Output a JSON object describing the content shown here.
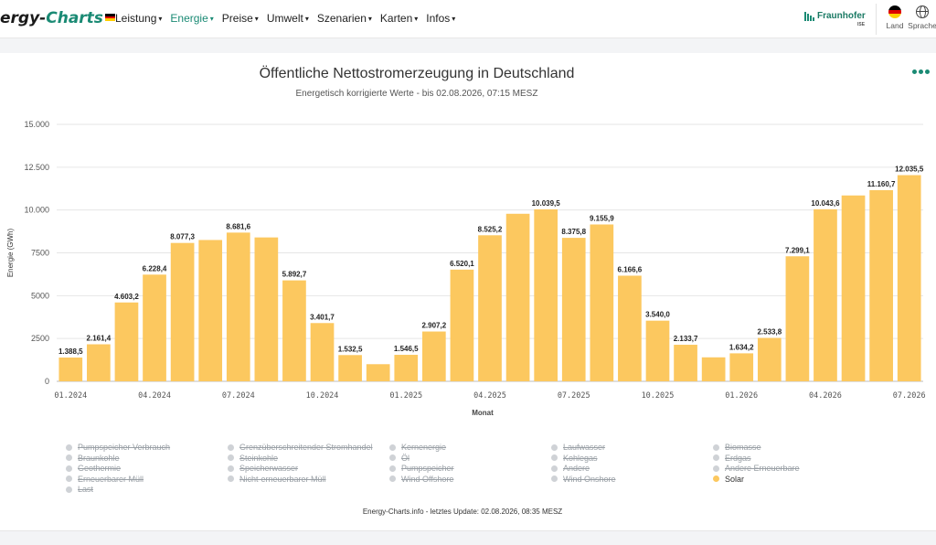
{
  "header": {
    "logo_prefix": "ergy-",
    "logo_accent": "Charts",
    "nav": [
      {
        "label": "Leistung",
        "active": false
      },
      {
        "label": "Energie",
        "active": true
      },
      {
        "label": "Preise",
        "active": false
      },
      {
        "label": "Umwelt",
        "active": false
      },
      {
        "label": "Szenarien",
        "active": false
      },
      {
        "label": "Karten",
        "active": false
      },
      {
        "label": "Infos",
        "active": false
      }
    ],
    "fraunhofer": "Fraunhofer",
    "fraunhofer_sub": "ISE",
    "land_label": "Land",
    "lang_label": "Sprache",
    "land_icon": "germany-flag-icon",
    "lang_icon": "globe-icon"
  },
  "colors": {
    "accent": "#1a8a74",
    "bar": "#fcc85f",
    "legend_off": "#cfd2d6"
  },
  "chart_data": {
    "type": "bar",
    "title": "Öffentliche Nettostromerzeugung in Deutschland",
    "subtitle": "Energetisch korrigierte Werte - bis 02.08.2026, 07:15 MESZ",
    "xlabel": "Monat",
    "ylabel": "Energie (GWh)",
    "ylim": [
      0,
      15000
    ],
    "y_ticks": [
      0,
      2500,
      5000,
      7500,
      10000,
      12500,
      15000
    ],
    "y_tick_labels": [
      "0",
      "2500",
      "5000",
      "7500",
      "10.000",
      "12.500",
      "15.000"
    ],
    "x_tick_labels": [
      {
        "index": 0,
        "label": "01.2024"
      },
      {
        "index": 3,
        "label": "04.2024"
      },
      {
        "index": 6,
        "label": "07.2024"
      },
      {
        "index": 9,
        "label": "10.2024"
      },
      {
        "index": 12,
        "label": "01.2025"
      },
      {
        "index": 15,
        "label": "04.2025"
      },
      {
        "index": 18,
        "label": "07.2025"
      },
      {
        "index": 21,
        "label": "10.2025"
      },
      {
        "index": 24,
        "label": "01.2026"
      },
      {
        "index": 27,
        "label": "04.2026"
      },
      {
        "index": 30,
        "label": "07.2026"
      }
    ],
    "grid": true,
    "categories": [
      "01.2024",
      "02.2024",
      "03.2024",
      "04.2024",
      "05.2024",
      "06.2024",
      "07.2024",
      "08.2024",
      "09.2024",
      "10.2024",
      "11.2024",
      "12.2024",
      "01.2025",
      "02.2025",
      "03.2025",
      "04.2025",
      "05.2025",
      "06.2025",
      "07.2025",
      "08.2025",
      "09.2025",
      "10.2025",
      "11.2025",
      "12.2025",
      "01.2026",
      "02.2026",
      "03.2026",
      "04.2026",
      "05.2026",
      "06.2026",
      "07.2026"
    ],
    "series": [
      {
        "name": "Solar",
        "values": [
          1388.5,
          2161.4,
          4603.2,
          6228.4,
          8077.3,
          8250,
          8681.6,
          8400,
          5892.7,
          3401.7,
          1532.5,
          1000,
          1546.5,
          2907.2,
          6520.1,
          8525.2,
          9780,
          10039.5,
          8375.8,
          9155.9,
          6166.6,
          3540.0,
          2133.7,
          1400,
          1634.2,
          2533.8,
          7299.1,
          10043.6,
          10850,
          11160.7,
          12035.5
        ],
        "labels": [
          "1.388,5",
          "2.161,4",
          "4.603,2",
          "6.228,4",
          "8.077,3",
          "",
          "8.681,6",
          "",
          "5.892,7",
          "3.401,7",
          "1.532,5",
          "",
          "1.546,5",
          "2.907,2",
          "6.520,1",
          "8.525,2",
          "",
          "10.039,5",
          "8.375,8",
          "9.155,9",
          "6.166,6",
          "3.540,0",
          "2.133,7",
          "",
          "1.634,2",
          "2.533,8",
          "7.299,1",
          "10.043,6",
          "",
          "11.160,7",
          "12.035,5"
        ]
      }
    ],
    "legend_placement": "bottom"
  },
  "legend": [
    {
      "label": "Pumpspeicher Verbrauch",
      "active": false
    },
    {
      "label": "Grenzüberschreitender Stromhandel",
      "active": false
    },
    {
      "label": "Kernenergie",
      "active": false
    },
    {
      "label": "Laufwasser",
      "active": false
    },
    {
      "label": "Biomasse",
      "active": false
    },
    {
      "label": "Braunkohle",
      "active": false
    },
    {
      "label": "Steinkohle",
      "active": false
    },
    {
      "label": "Öl",
      "active": false
    },
    {
      "label": "Kohlegas",
      "active": false
    },
    {
      "label": "Erdgas",
      "active": false
    },
    {
      "label": "Geothermie",
      "active": false
    },
    {
      "label": "Speicherwasser",
      "active": false
    },
    {
      "label": "Pumpspeicher",
      "active": false
    },
    {
      "label": "Andere",
      "active": false
    },
    {
      "label": "Andere Erneuerbare",
      "active": false
    },
    {
      "label": "Erneuerbarer Müll",
      "active": false
    },
    {
      "label": "Nicht-erneuerbarer Müll",
      "active": false
    },
    {
      "label": "Wind Offshore",
      "active": false
    },
    {
      "label": "Wind Onshore",
      "active": false
    },
    {
      "label": "Solar",
      "active": true
    },
    {
      "label": "Last",
      "active": false
    }
  ],
  "footer": "Energy-Charts.info - letztes Update: 02.08.2026, 08:35 MESZ"
}
